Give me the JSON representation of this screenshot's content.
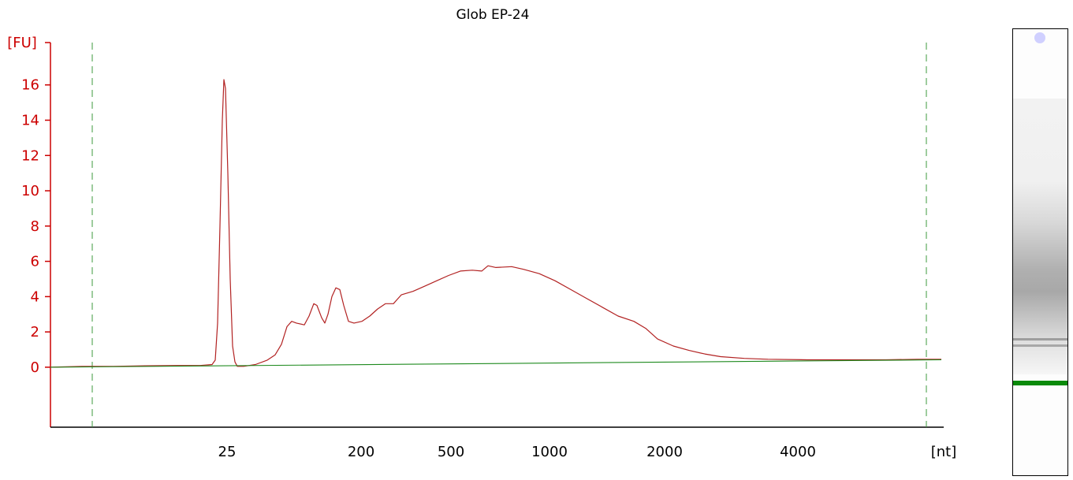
{
  "chart_data": {
    "type": "line",
    "title": "Glob EP-24",
    "ylabel": "[FU]",
    "xlabel": "[nt]",
    "ylim": [
      -3.4,
      18.4
    ],
    "y_ticks": [
      0,
      2,
      4,
      6,
      8,
      10,
      12,
      14,
      16
    ],
    "x_ticks": [
      "25",
      "200",
      "500",
      "1000",
      "2000",
      "4000"
    ],
    "marker_lines": [
      "lower marker",
      "upper marker"
    ],
    "series": [
      {
        "color": "#b22222",
        "points": [
          [
            0,
            0.0
          ],
          [
            40,
            0.05
          ],
          [
            80,
            0.05
          ],
          [
            120,
            0.08
          ],
          [
            160,
            0.1
          ],
          [
            190,
            0.1
          ],
          [
            205,
            0.15
          ],
          [
            209,
            0.4
          ],
          [
            212,
            2.5
          ],
          [
            215,
            8.0
          ],
          [
            218,
            14.0
          ],
          [
            220,
            16.3
          ],
          [
            222,
            15.8
          ],
          [
            225,
            11.0
          ],
          [
            228,
            5.0
          ],
          [
            231,
            1.2
          ],
          [
            234,
            0.3
          ],
          [
            237,
            0.05
          ],
          [
            245,
            0.05
          ],
          [
            260,
            0.15
          ],
          [
            275,
            0.4
          ],
          [
            285,
            0.7
          ],
          [
            293,
            1.3
          ],
          [
            300,
            2.3
          ],
          [
            306,
            2.6
          ],
          [
            312,
            2.5
          ],
          [
            322,
            2.4
          ],
          [
            328,
            2.9
          ],
          [
            334,
            3.6
          ],
          [
            338,
            3.5
          ],
          [
            344,
            2.8
          ],
          [
            348,
            2.5
          ],
          [
            352,
            3.0
          ],
          [
            357,
            4.0
          ],
          [
            362,
            4.5
          ],
          [
            367,
            4.4
          ],
          [
            372,
            3.5
          ],
          [
            378,
            2.6
          ],
          [
            385,
            2.5
          ],
          [
            395,
            2.6
          ],
          [
            405,
            2.9
          ],
          [
            415,
            3.3
          ],
          [
            425,
            3.6
          ],
          [
            435,
            3.6
          ],
          [
            445,
            4.1
          ],
          [
            460,
            4.3
          ],
          [
            475,
            4.6
          ],
          [
            490,
            4.9
          ],
          [
            505,
            5.2
          ],
          [
            520,
            5.45
          ],
          [
            535,
            5.5
          ],
          [
            547,
            5.45
          ],
          [
            555,
            5.75
          ],
          [
            565,
            5.65
          ],
          [
            585,
            5.7
          ],
          [
            600,
            5.55
          ],
          [
            620,
            5.3
          ],
          [
            640,
            4.9
          ],
          [
            660,
            4.4
          ],
          [
            680,
            3.9
          ],
          [
            700,
            3.4
          ],
          [
            720,
            2.9
          ],
          [
            740,
            2.6
          ],
          [
            755,
            2.2
          ],
          [
            770,
            1.6
          ],
          [
            790,
            1.2
          ],
          [
            810,
            0.95
          ],
          [
            830,
            0.75
          ],
          [
            850,
            0.6
          ],
          [
            880,
            0.5
          ],
          [
            910,
            0.45
          ],
          [
            960,
            0.42
          ],
          [
            1010,
            0.42
          ],
          [
            1060,
            0.42
          ],
          [
            1100,
            0.45
          ],
          [
            1130,
            0.45
          ]
        ]
      },
      {
        "color": "#1e8a1e",
        "points": [
          [
            0,
            0.0
          ],
          [
            1130,
            0.42
          ]
        ]
      }
    ]
  },
  "gel": {
    "band_color": "#0a8a0a",
    "smear_color": "#9a9a9a",
    "well_color": "#c8c8ff"
  }
}
